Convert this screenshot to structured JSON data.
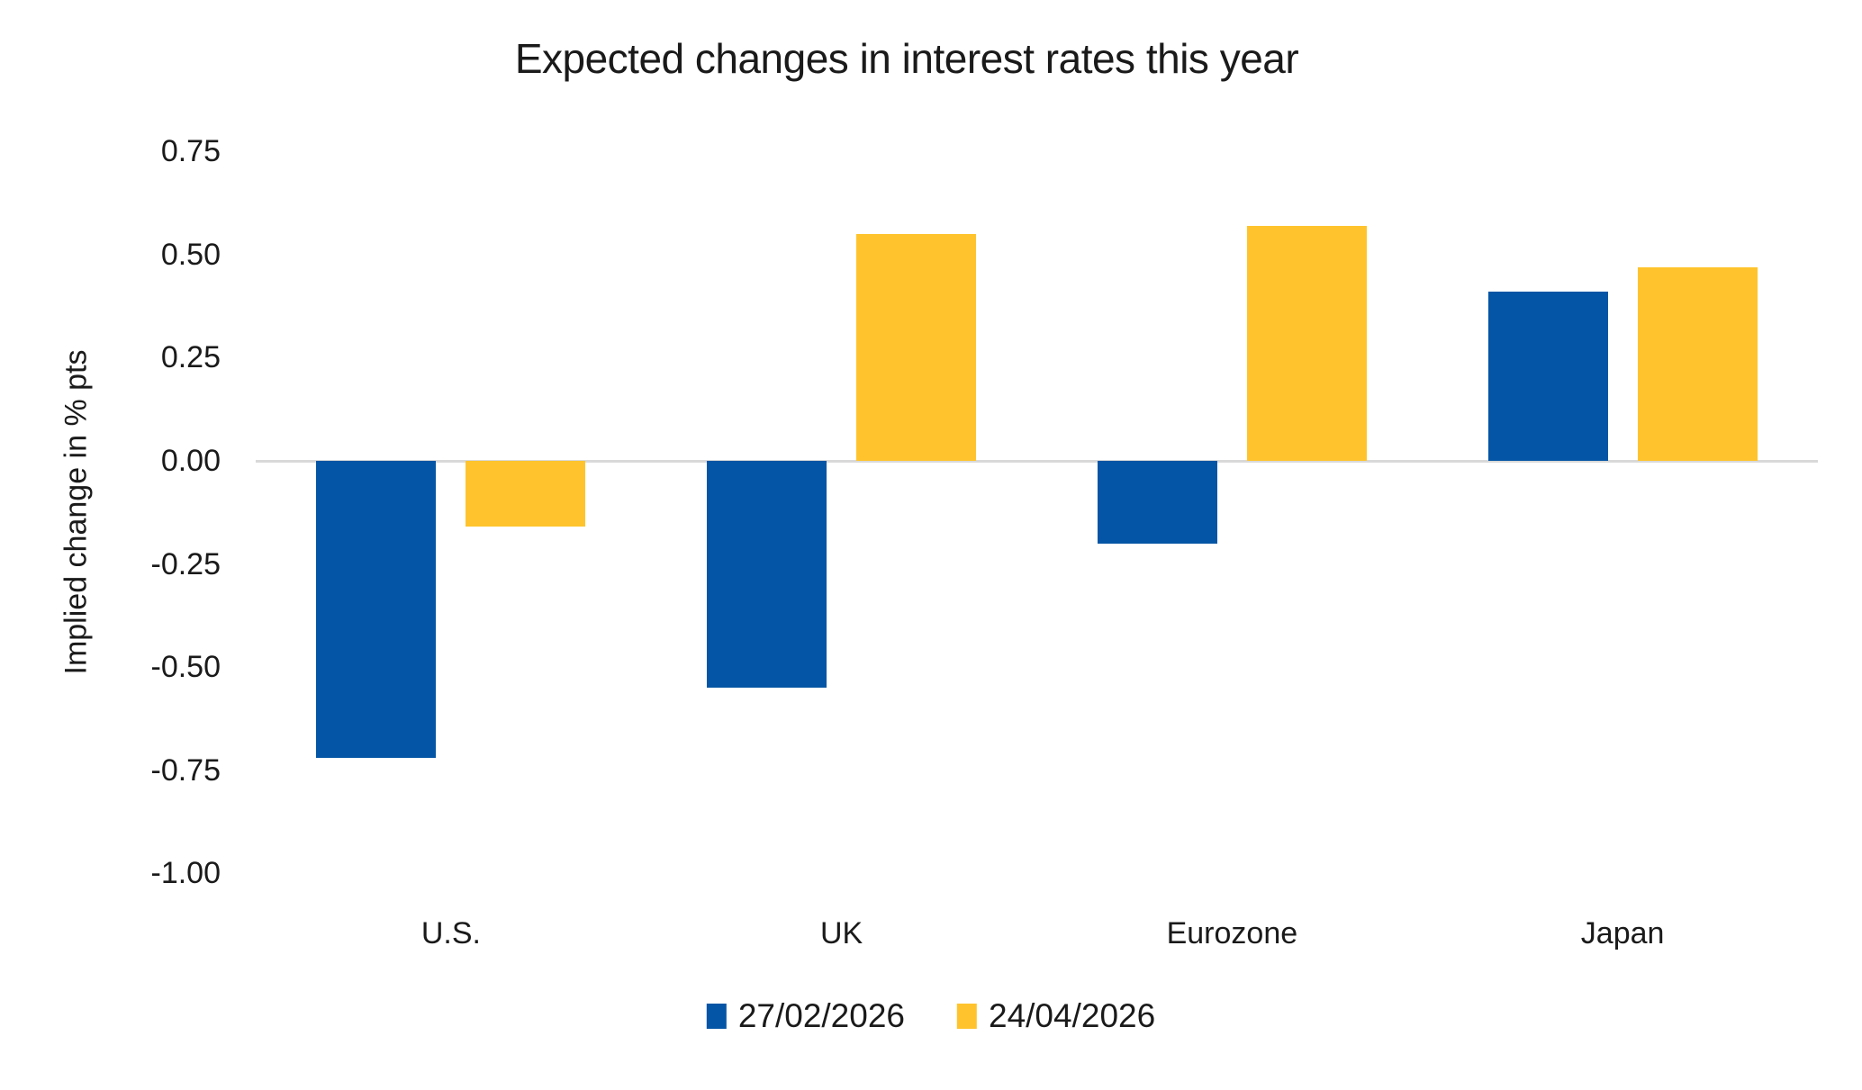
{
  "chart_data": {
    "type": "bar",
    "title": "Expected changes in interest rates this year",
    "xlabel": "",
    "ylabel": "Implied change in % pts",
    "categories": [
      "U.S.",
      "UK",
      "Eurozone",
      "Japan"
    ],
    "series": [
      {
        "name": "27/02/2026",
        "color": "#0455A5",
        "values": [
          -0.72,
          -0.55,
          -0.2,
          0.41
        ]
      },
      {
        "name": "24/04/2026",
        "color": "#FFC42D",
        "values": [
          -0.16,
          0.55,
          0.57,
          0.47
        ]
      }
    ],
    "ylim": [
      -1.0,
      0.75
    ],
    "ytick_step": 0.25,
    "yticks": [
      "0.75",
      "0.50",
      "0.25",
      "0.00",
      "-0.25",
      "-0.50",
      "-0.75",
      "-1.00"
    ],
    "grid": false,
    "legend_position": "bottom",
    "colors": {
      "axis_line": "#D9D9D9",
      "text": "#1a1a1a",
      "background": "#FFFFFF"
    }
  }
}
